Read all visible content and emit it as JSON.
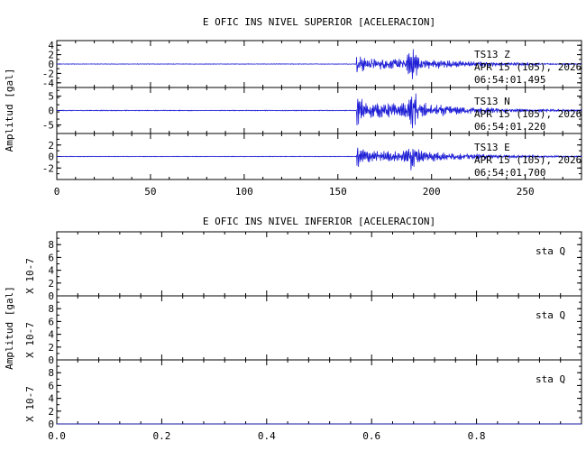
{
  "chart_data": [
    {
      "type": "line",
      "title": "E OFIC INS NIVEL SUPERIOR [ACELERACION]",
      "ylabel": "Amplitud [gal]",
      "xlim": [
        0,
        280
      ],
      "x_ticks": [
        0,
        50,
        100,
        150,
        200,
        250
      ],
      "line_color": "#1f1fd6",
      "traces": [
        {
          "station": "TS13",
          "component": "Z",
          "date": "APR 15 (105), 2026",
          "time": "06:54:01.495",
          "ylim": [
            -5,
            5
          ],
          "y_ticks": [
            4,
            2,
            0,
            -2,
            -4
          ],
          "onset": 160,
          "peak": 190,
          "peak_amp": 3.0
        },
        {
          "station": "TS13",
          "component": "N",
          "date": "APR 15 (105), 2026",
          "time": "06:54:01.220",
          "ylim": [
            -8,
            8
          ],
          "y_ticks": [
            5,
            0,
            -5
          ],
          "onset": 160,
          "peak": 190,
          "peak_amp": 6.5
        },
        {
          "station": "TS13",
          "component": "E",
          "date": "APR 15 (105), 2026",
          "time": "06:54:01.700",
          "ylim": [
            -4,
            4
          ],
          "y_ticks": [
            2,
            0,
            -2
          ],
          "onset": 160,
          "peak": 190,
          "peak_amp": 2.5
        }
      ]
    },
    {
      "type": "line",
      "title": "E OFIC INS NIVEL INFERIOR [ACELERACION]",
      "ylabel": "Amplitud [gal]",
      "y_scale_label": "X 10-7",
      "xlim": [
        0,
        1
      ],
      "x_ticks": [
        0.0,
        0.2,
        0.4,
        0.6,
        0.8
      ],
      "x_tick_labels": [
        "0.0",
        "0.2",
        "0.4",
        "0.6",
        "0.8"
      ],
      "line_color": "#1f1fd6",
      "traces": [
        {
          "station": "sta",
          "component": "Q",
          "ylim": [
            0,
            10
          ],
          "y_ticks": [
            8,
            6,
            4,
            2,
            0
          ],
          "value": 0
        },
        {
          "station": "sta",
          "component": "Q",
          "ylim": [
            0,
            10
          ],
          "y_ticks": [
            8,
            6,
            4,
            2,
            0
          ],
          "value": 0
        },
        {
          "station": "sta",
          "component": "Q",
          "ylim": [
            0,
            10
          ],
          "y_ticks": [
            8,
            6,
            4,
            2,
            0
          ],
          "value": 0
        }
      ]
    }
  ]
}
